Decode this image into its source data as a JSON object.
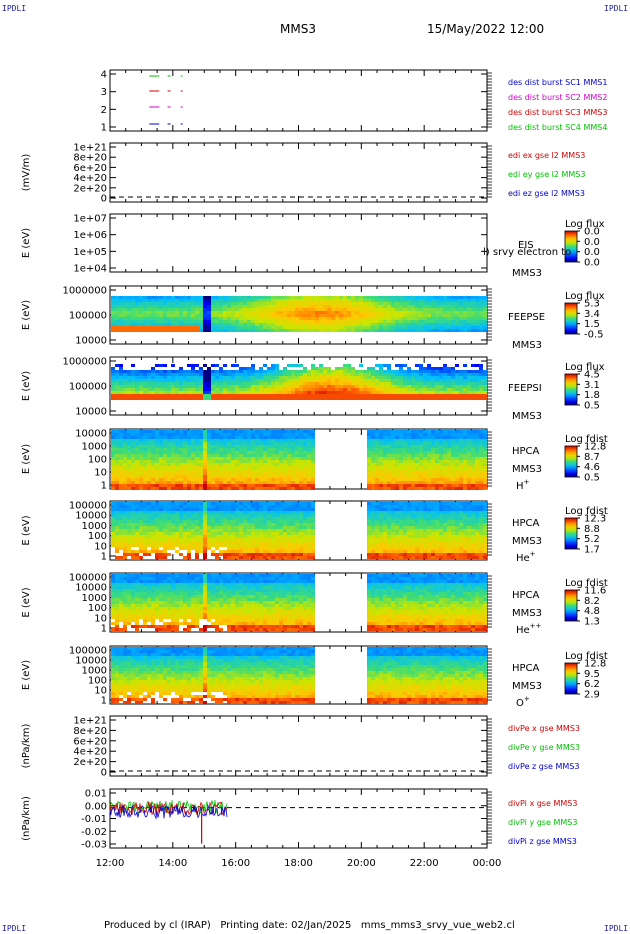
{
  "corner_label": "IPDLI",
  "header": {
    "mission": "MMS3",
    "datetime": "15/May/2022 12:00"
  },
  "footer": {
    "text": "Produced by cl (IRAP)   Printing date: 02/Jan/2025   mms_mms3_srvy_vue_web2.cl"
  },
  "x_axis": {
    "ticks": [
      "12:00",
      "14:00",
      "16:00",
      "18:00",
      "20:00",
      "22:00",
      "00:00"
    ]
  },
  "colors": {
    "red": "#d40000",
    "green": "#00c000",
    "blue": "#0000d0",
    "magenta": "#d000d0"
  },
  "chart_data": [
    {
      "type": "line",
      "panel": "burst",
      "y_ticks": [
        "4",
        "3",
        "2",
        "1"
      ],
      "series": [
        {
          "name": "des dist burst SC1 MMS1",
          "level": 4,
          "x": [
            "13:15",
            "13:50",
            "14:15"
          ]
        },
        {
          "name": "des dist burst SC2 MMS2",
          "level": 3,
          "x": [
            "13:15",
            "13:50",
            "14:15"
          ]
        },
        {
          "name": "des dist burst SC3 MMS3",
          "level": 2,
          "x": [
            "13:15",
            "13:50",
            "14:15"
          ]
        },
        {
          "name": "des dist burst SC4 MMS4",
          "level": 1,
          "x": [
            "13:15",
            "13:50",
            "14:15"
          ]
        }
      ]
    },
    {
      "type": "line",
      "panel": "edi",
      "ylabel": "(mV/m)",
      "y_ticks": [
        "1e+21",
        "8e+20",
        "6e+20",
        "4e+20",
        "2e+20",
        "0"
      ],
      "series": [
        {
          "name": "edi ex gse l2 MMS3"
        },
        {
          "name": "edi ey gse l2 MMS3"
        },
        {
          "name": "edi ez gse l2 MMS3"
        }
      ]
    },
    {
      "type": "heatmap",
      "panel": "eis",
      "ylabel": "E (eV)",
      "y_ticks": [
        "1e+07",
        "1e+06",
        "1e+05",
        "1e+04"
      ],
      "labels": [
        "EIS",
        "MMS3"
      ],
      "overlay": "l) srvy electron to",
      "cbar_title": "Log flux",
      "cbar_ticks": [
        "0.0",
        "0.0",
        "0.0",
        "0.0"
      ]
    },
    {
      "type": "heatmap",
      "panel": "feepse",
      "ylabel": "E (eV)",
      "y_ticks": [
        "1000000",
        "100000",
        "10000"
      ],
      "labels": [
        "FEEPSE",
        "MMS3"
      ],
      "cbar_title": "Log flux",
      "cbar_ticks": [
        "5.3",
        "3.4",
        "1.5",
        "-0.5"
      ]
    },
    {
      "type": "heatmap",
      "panel": "feepsi",
      "ylabel": "E (eV)",
      "y_ticks": [
        "1000000",
        "100000",
        "10000"
      ],
      "labels": [
        "FEEPSI",
        "MMS3"
      ],
      "cbar_title": "Log flux",
      "cbar_ticks": [
        "4.5",
        "3.1",
        "1.8",
        "0.5"
      ]
    },
    {
      "type": "heatmap",
      "panel": "hpca_h",
      "ylabel": "E (eV)",
      "y_ticks": [
        "10000",
        "1000",
        "100",
        "10",
        "1"
      ],
      "labels": [
        "HPCA",
        "MMS3"
      ],
      "species": "H",
      "species_sup": "+",
      "cbar_title": "Log fdist",
      "cbar_ticks": [
        "12.8",
        "8.7",
        "4.6",
        "0.5"
      ],
      "gap": [
        "18:35",
        "20:05"
      ]
    },
    {
      "type": "heatmap",
      "panel": "hpca_he",
      "ylabel": "E (eV)",
      "y_ticks": [
        "100000",
        "10000",
        "1000",
        "100",
        "10",
        "1"
      ],
      "labels": [
        "HPCA",
        "MMS3"
      ],
      "species": "He",
      "species_sup": "+",
      "cbar_title": "Log fdist",
      "cbar_ticks": [
        "12.3",
        "8.8",
        "5.2",
        "1.7"
      ],
      "gap": [
        "18:35",
        "20:05"
      ]
    },
    {
      "type": "heatmap",
      "panel": "hpca_hepp",
      "ylabel": "E (eV)",
      "y_ticks": [
        "100000",
        "10000",
        "1000",
        "100",
        "10",
        "1"
      ],
      "labels": [
        "HPCA",
        "MMS3"
      ],
      "species": "He",
      "species_sup": "++",
      "cbar_title": "Log fdist",
      "cbar_ticks": [
        "11.6",
        "8.2",
        "4.8",
        "1.3"
      ],
      "gap": [
        "18:35",
        "20:05"
      ]
    },
    {
      "type": "heatmap",
      "panel": "hpca_o",
      "ylabel": "E (eV)",
      "y_ticks": [
        "100000",
        "10000",
        "1000",
        "100",
        "10",
        "1"
      ],
      "labels": [
        "HPCA",
        "MMS3"
      ],
      "species": "O",
      "species_sup": "+",
      "cbar_title": "Log fdist",
      "cbar_ticks": [
        "12.8",
        "9.5",
        "6.2",
        "2.9"
      ],
      "gap": [
        "18:35",
        "20:05"
      ]
    },
    {
      "type": "line",
      "panel": "divpe",
      "ylabel": "(nPa/km)",
      "y_ticks": [
        "1e+21",
        "8e+20",
        "6e+20",
        "4e+20",
        "2e+20",
        "0"
      ],
      "series": [
        {
          "name": "divPe x gse MMS3"
        },
        {
          "name": "divPe y gse MMS3"
        },
        {
          "name": "divPe z gse MMS3"
        }
      ]
    },
    {
      "type": "line",
      "panel": "divpi",
      "ylabel": "(nPa/km)",
      "y_ticks": [
        "0.01",
        "0.00",
        "-0.01",
        "-0.02",
        "-0.03"
      ],
      "ylim": [
        -0.037,
        0.017
      ],
      "series": [
        {
          "name": "divPi x gse MMS3"
        },
        {
          "name": "divPi y gse MMS3"
        },
        {
          "name": "divPi z gse MMS3"
        }
      ],
      "x_range": [
        "12:00",
        "15:45"
      ],
      "spike": {
        "x": "14:55",
        "y": -0.033
      }
    }
  ]
}
